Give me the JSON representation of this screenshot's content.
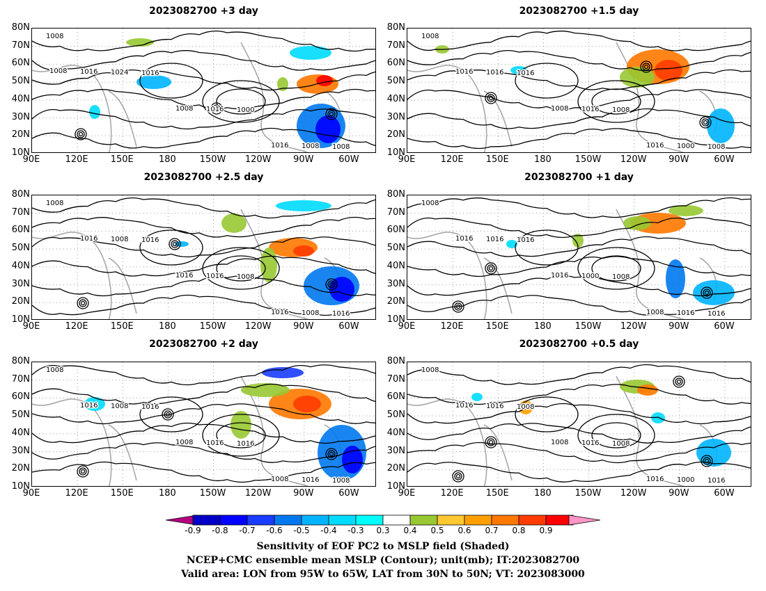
{
  "panels": [
    {
      "title": "2023082700 +3 day",
      "isobar_labels": [
        "1008",
        "1016",
        "1000",
        "1008",
        "1024",
        "1016",
        "1008",
        "1016",
        "1008",
        "1016",
        "1008"
      ]
    },
    {
      "title": "2023082700 +1.5 day",
      "isobar_labels": [
        "1008",
        "1016",
        "1008",
        "1008",
        "1016",
        "1016",
        "1000",
        "1016",
        "1008",
        "1016"
      ]
    },
    {
      "title": "2023082700 +2.5 day",
      "isobar_labels": [
        "1008",
        "1016",
        "1008",
        "1016",
        "1008",
        "1016",
        "1008",
        "1016",
        "1016",
        "1016"
      ]
    },
    {
      "title": "2023082700 +1 day",
      "isobar_labels": [
        "1008",
        "1016",
        "1008",
        "1016",
        "1016",
        "1000",
        "1016",
        "1016",
        "1016",
        "1008"
      ]
    },
    {
      "title": "2023082700 +2 day",
      "isobar_labels": [
        "1008",
        "1016",
        "1016",
        "1008",
        "1008",
        "1016",
        "1016",
        "1016",
        "1008",
        "1008"
      ]
    },
    {
      "title": "2023082700 +0.5 day",
      "isobar_labels": [
        "1008",
        "1008",
        "1008",
        "1016",
        "1016",
        "1016",
        "1000",
        "1016",
        "1008",
        "1016"
      ]
    }
  ],
  "lat_ticks": [
    "80N",
    "70N",
    "60N",
    "50N",
    "40N",
    "30N",
    "20N",
    "10N"
  ],
  "lon_ticks": [
    "90E",
    "120E",
    "150E",
    "180",
    "150W",
    "120W",
    "90W",
    "60W"
  ],
  "colorbar": {
    "labels": [
      "-0.9",
      "-0.8",
      "-0.7",
      "-0.6",
      "-0.5",
      "-0.4",
      "-0.3",
      "0.3",
      "0.4",
      "0.5",
      "0.6",
      "0.7",
      "0.8",
      "0.9"
    ],
    "colors": [
      "#b4007e",
      "#0000c8",
      "#0000ff",
      "#1a3cff",
      "#0078f0",
      "#00b4ff",
      "#00dcff",
      "#00ffff",
      "#ffffff",
      "#98c832",
      "#ffc832",
      "#ffa000",
      "#ff7800",
      "#ff3c00",
      "#ff0000",
      "#ff96c8"
    ]
  },
  "captions": [
    "Sensitivity of EOF PC2 to MSLP field (Shaded)",
    "NCEP+CMC ensemble mean MSLP (Contour); unit(mb); IT:2023082700",
    "Valid area: LON from 95W to 65W, LAT from 30N to 50N; VT: 2023083000"
  ]
}
